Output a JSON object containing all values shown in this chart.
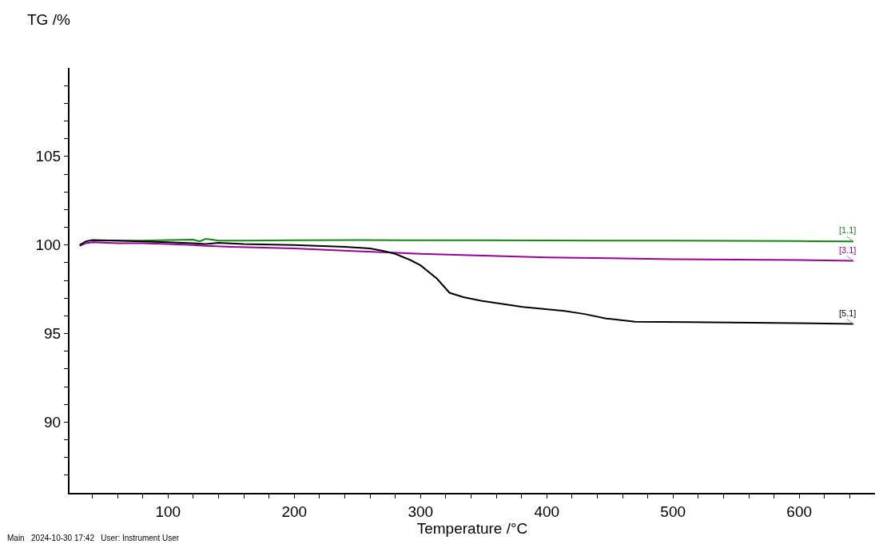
{
  "chart_data": {
    "type": "line",
    "xlabel": "Temperature /°C",
    "ylabel": "TG /%",
    "annotations": [
      "Main   2024-10-30 17:42   User: Instrument User"
    ],
    "xlim": [
      22,
      660
    ],
    "xticks": [
      {
        "value": 40,
        "label": null
      },
      {
        "value": 60,
        "label": null
      },
      {
        "value": 80,
        "label": null
      },
      100,
      {
        "value": 120,
        "label": null
      },
      {
        "value": 140,
        "label": null
      },
      {
        "value": 160,
        "label": null
      },
      {
        "value": 180,
        "label": null
      },
      200,
      {
        "value": 220,
        "label": null
      },
      {
        "value": 240,
        "label": null
      },
      {
        "value": 260,
        "label": null
      },
      {
        "value": 280,
        "label": null
      },
      300,
      {
        "value": 320,
        "label": null
      },
      {
        "value": 340,
        "label": null
      },
      {
        "value": 360,
        "label": null
      },
      {
        "value": 380,
        "label": null
      },
      400,
      {
        "value": 420,
        "label": null
      },
      {
        "value": 440,
        "label": null
      },
      {
        "value": 460,
        "label": null
      },
      {
        "value": 480,
        "label": null
      },
      500,
      {
        "value": 520,
        "label": null
      },
      {
        "value": 540,
        "label": null
      },
      {
        "value": 560,
        "label": null
      },
      {
        "value": 580,
        "label": null
      },
      600,
      {
        "value": 620,
        "label": null
      },
      {
        "value": 640,
        "label": null
      }
    ],
    "ylim": [
      86,
      110
    ],
    "yticks": [
      {
        "value": 87,
        "label": null
      },
      {
        "value": 88,
        "label": null
      },
      {
        "value": 89,
        "label": null
      },
      90,
      {
        "value": 91,
        "label": null
      },
      {
        "value": 92,
        "label": null
      },
      {
        "value": 93,
        "label": null
      },
      {
        "value": 94,
        "label": null
      },
      95,
      {
        "value": 96,
        "label": null
      },
      {
        "value": 97,
        "label": null
      },
      {
        "value": 98,
        "label": null
      },
      {
        "value": 99,
        "label": null
      },
      100,
      {
        "value": 101,
        "label": null
      },
      {
        "value": 102,
        "label": null
      },
      {
        "value": 103,
        "label": null
      },
      {
        "value": 104,
        "label": null
      },
      105,
      {
        "value": 106,
        "label": null
      },
      {
        "value": 107,
        "label": null
      },
      {
        "value": 108,
        "label": null
      },
      {
        "value": 109,
        "label": null
      }
    ],
    "grid": false,
    "legend": false,
    "marker": "none",
    "line_style": "solid",
    "series": [
      {
        "name": "[1.1]",
        "color": "#118811",
        "x": [
          40,
          60,
          80,
          100,
          120,
          125,
          130,
          135,
          140,
          160,
          200,
          250,
          300,
          350,
          400,
          450,
          500,
          550,
          600,
          643
        ],
        "values": [
          100.25,
          100.25,
          100.25,
          100.28,
          100.3,
          100.2,
          100.35,
          100.3,
          100.25,
          100.25,
          100.27,
          100.28,
          100.27,
          100.27,
          100.26,
          100.25,
          100.24,
          100.23,
          100.22,
          100.2
        ]
      },
      {
        "name": "[3.1]",
        "color": "#990099",
        "x": [
          30,
          35,
          40,
          60,
          80,
          100,
          120,
          130,
          150,
          200,
          250,
          300,
          350,
          400,
          450,
          500,
          550,
          600,
          643
        ],
        "values": [
          99.95,
          100.1,
          100.15,
          100.1,
          100.1,
          100.05,
          100.0,
          99.95,
          99.9,
          99.8,
          99.65,
          99.5,
          99.4,
          99.3,
          99.25,
          99.2,
          99.17,
          99.15,
          99.1
        ]
      },
      {
        "name": "[5.1]",
        "color": "#000000",
        "x": [
          30,
          35,
          40,
          60,
          80,
          100,
          120,
          130,
          140,
          160,
          200,
          240,
          260,
          271,
          280,
          292,
          300,
          313,
          323,
          334,
          348,
          381,
          414,
          430,
          447,
          470,
          514,
          580,
          643
        ],
        "values": [
          100.0,
          100.2,
          100.28,
          100.25,
          100.2,
          100.15,
          100.1,
          100.05,
          100.12,
          100.05,
          100.0,
          99.9,
          99.8,
          99.66,
          99.5,
          99.15,
          98.85,
          98.1,
          97.3,
          97.05,
          96.85,
          96.5,
          96.27,
          96.1,
          95.85,
          95.67,
          95.64,
          95.6,
          95.54
        ]
      }
    ]
  }
}
